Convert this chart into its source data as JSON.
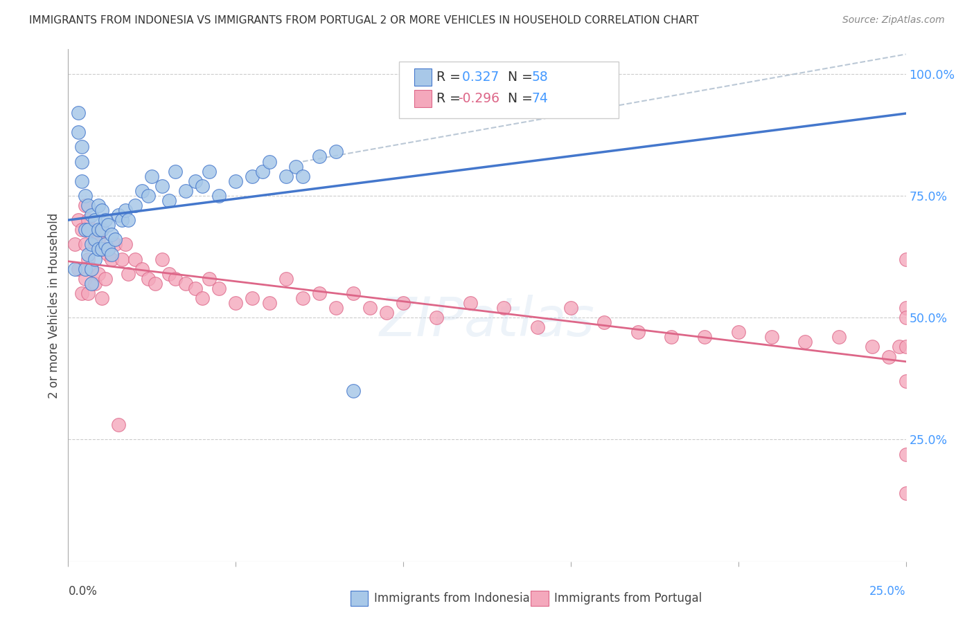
{
  "title": "IMMIGRANTS FROM INDONESIA VS IMMIGRANTS FROM PORTUGAL 2 OR MORE VEHICLES IN HOUSEHOLD CORRELATION CHART",
  "source": "Source: ZipAtlas.com",
  "ylabel": "2 or more Vehicles in Household",
  "x_lim": [
    0.0,
    0.25
  ],
  "y_lim": [
    0.0,
    1.05
  ],
  "legend_r_indonesia": "0.327",
  "legend_n_indonesia": "58",
  "legend_r_portugal": "-0.296",
  "legend_n_portugal": "74",
  "color_indonesia": "#a8c8e8",
  "color_portugal": "#f4a8bc",
  "line_color_indonesia": "#4477cc",
  "line_color_portugal": "#dd6688",
  "line_color_dashed": "#aabbcc",
  "background_color": "#ffffff",
  "indonesia_x": [
    0.002,
    0.003,
    0.003,
    0.004,
    0.004,
    0.004,
    0.005,
    0.005,
    0.005,
    0.006,
    0.006,
    0.006,
    0.007,
    0.007,
    0.007,
    0.007,
    0.008,
    0.008,
    0.008,
    0.009,
    0.009,
    0.009,
    0.01,
    0.01,
    0.01,
    0.011,
    0.011,
    0.012,
    0.012,
    0.013,
    0.013,
    0.014,
    0.015,
    0.016,
    0.017,
    0.018,
    0.02,
    0.022,
    0.024,
    0.025,
    0.028,
    0.03,
    0.032,
    0.035,
    0.038,
    0.04,
    0.042,
    0.045,
    0.05,
    0.055,
    0.058,
    0.06,
    0.065,
    0.068,
    0.07,
    0.075,
    0.08,
    0.085
  ],
  "indonesia_y": [
    0.6,
    0.88,
    0.92,
    0.85,
    0.82,
    0.78,
    0.75,
    0.68,
    0.6,
    0.73,
    0.68,
    0.63,
    0.71,
    0.65,
    0.6,
    0.57,
    0.7,
    0.66,
    0.62,
    0.73,
    0.68,
    0.64,
    0.72,
    0.68,
    0.64,
    0.7,
    0.65,
    0.69,
    0.64,
    0.67,
    0.63,
    0.66,
    0.71,
    0.7,
    0.72,
    0.7,
    0.73,
    0.76,
    0.75,
    0.79,
    0.77,
    0.74,
    0.8,
    0.76,
    0.78,
    0.77,
    0.8,
    0.75,
    0.78,
    0.79,
    0.8,
    0.82,
    0.79,
    0.81,
    0.79,
    0.83,
    0.84,
    0.35
  ],
  "portugal_x": [
    0.002,
    0.003,
    0.003,
    0.004,
    0.004,
    0.005,
    0.005,
    0.005,
    0.006,
    0.006,
    0.006,
    0.007,
    0.007,
    0.008,
    0.008,
    0.009,
    0.009,
    0.01,
    0.01,
    0.011,
    0.011,
    0.012,
    0.013,
    0.014,
    0.015,
    0.016,
    0.017,
    0.018,
    0.02,
    0.022,
    0.024,
    0.026,
    0.028,
    0.03,
    0.032,
    0.035,
    0.038,
    0.04,
    0.042,
    0.045,
    0.05,
    0.055,
    0.06,
    0.065,
    0.07,
    0.075,
    0.08,
    0.085,
    0.09,
    0.095,
    0.1,
    0.11,
    0.12,
    0.13,
    0.14,
    0.15,
    0.16,
    0.17,
    0.18,
    0.19,
    0.2,
    0.21,
    0.22,
    0.23,
    0.24,
    0.245,
    0.248,
    0.25,
    0.25,
    0.25,
    0.25,
    0.25,
    0.25,
    0.25
  ],
  "portugal_y": [
    0.65,
    0.7,
    0.6,
    0.68,
    0.55,
    0.73,
    0.65,
    0.58,
    0.7,
    0.62,
    0.55,
    0.68,
    0.6,
    0.65,
    0.57,
    0.66,
    0.59,
    0.68,
    0.54,
    0.64,
    0.58,
    0.63,
    0.62,
    0.65,
    0.28,
    0.62,
    0.65,
    0.59,
    0.62,
    0.6,
    0.58,
    0.57,
    0.62,
    0.59,
    0.58,
    0.57,
    0.56,
    0.54,
    0.58,
    0.56,
    0.53,
    0.54,
    0.53,
    0.58,
    0.54,
    0.55,
    0.52,
    0.55,
    0.52,
    0.51,
    0.53,
    0.5,
    0.53,
    0.52,
    0.48,
    0.52,
    0.49,
    0.47,
    0.46,
    0.46,
    0.47,
    0.46,
    0.45,
    0.46,
    0.44,
    0.42,
    0.44,
    0.62,
    0.52,
    0.44,
    0.37,
    0.22,
    0.14,
    0.5
  ]
}
